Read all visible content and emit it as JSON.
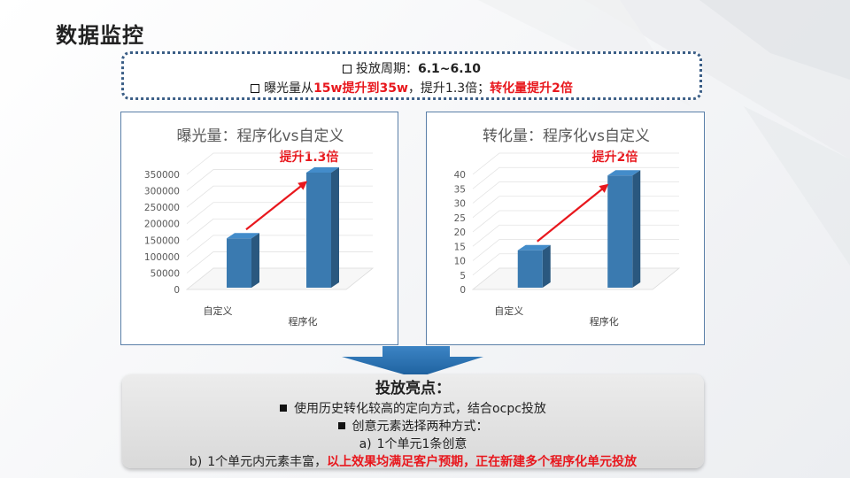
{
  "title": "数据监控",
  "summary": {
    "line1_prefix": "投放周期：",
    "line1_value": "6.1~6.10",
    "line2_prefix": "曝光量从",
    "line2_highlight1": "15w提升到35w",
    "line2_mid": "，提升1.3倍；",
    "line2_highlight2": "转化量提升2倍"
  },
  "chart_data": [
    {
      "type": "bar",
      "title": "曝光量：程序化vs自定义",
      "annotation": "提升1.3倍",
      "categories": [
        "自定义",
        "程序化"
      ],
      "values": [
        150000,
        350000
      ],
      "yticks": [
        "0",
        "50000",
        "100000",
        "150000",
        "200000",
        "250000",
        "300000",
        "350000"
      ],
      "ylim": [
        0,
        350000
      ],
      "bar_color": "#3a7ab0",
      "arrow_color": "#e8171d"
    },
    {
      "type": "bar",
      "title": "转化量：程序化vs自定义",
      "annotation": "提升2倍",
      "categories": [
        "自定义",
        "程序化"
      ],
      "values": [
        13,
        39
      ],
      "yticks": [
        "0",
        "5",
        "10",
        "15",
        "20",
        "25",
        "30",
        "35",
        "40"
      ],
      "ylim": [
        0,
        40
      ],
      "bar_color": "#3a7ab0",
      "arrow_color": "#e8171d"
    }
  ],
  "highlights": {
    "heading": "投放亮点：",
    "item1": "使用历史转化较高的定向方式，结合ocpc投放",
    "item2": "创意元素选择两种方式：",
    "sub_a_label": "a)",
    "sub_a_text": "1个单元1条创意",
    "sub_b_label": "b)",
    "sub_b_text": "1个单元内元素丰富，",
    "sub_b_highlight": "以上效果均满足客户预期，正在新建多个程序化单元投放"
  }
}
